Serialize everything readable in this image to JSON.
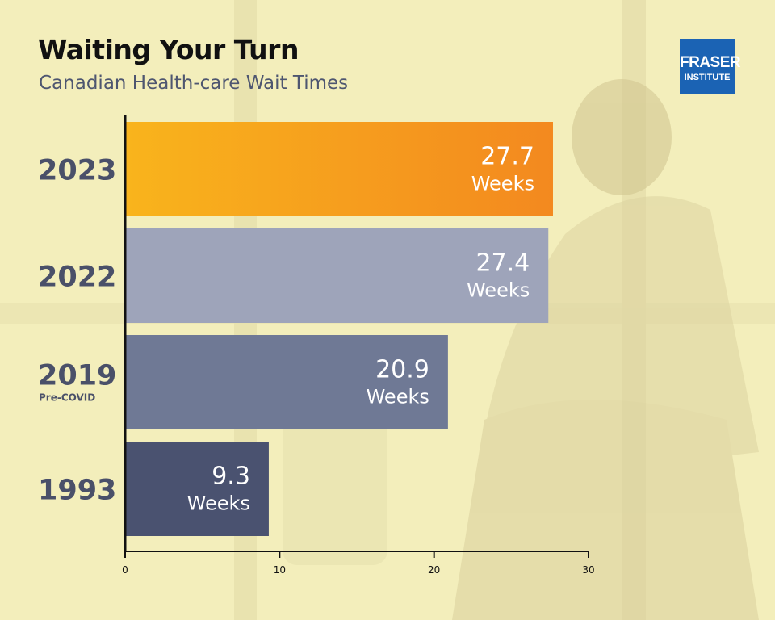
{
  "title": "Waiting Your Turn",
  "subtitle": "Canadian Health-care Wait Times",
  "logo": {
    "line1": "FRASER",
    "line2": "INSTITUTE"
  },
  "colors": {
    "bar_2023": "#f6a020",
    "bar_2022": "#9ea4ba",
    "bar_2019": "#6f7995",
    "bar_1993": "#4a5270",
    "label": "#4a5069",
    "background": "#f3eebb",
    "logo": "#1b63b4"
  },
  "chart_data": {
    "type": "bar",
    "orientation": "horizontal",
    "title": "Waiting Your Turn",
    "subtitle": "Canadian Health-care Wait Times",
    "categories": [
      "2023",
      "2022",
      "2019",
      "1993"
    ],
    "category_sublabels": [
      "",
      "",
      "Pre-COVID",
      ""
    ],
    "values": [
      27.7,
      27.4,
      20.9,
      9.3
    ],
    "value_labels": [
      "27.7",
      "27.4",
      "20.9",
      "9.3"
    ],
    "unit_label": "Weeks",
    "xlim": [
      0,
      30
    ],
    "xticks": [
      "0",
      "10",
      "20",
      "30"
    ],
    "grid": false,
    "legend": "none"
  }
}
